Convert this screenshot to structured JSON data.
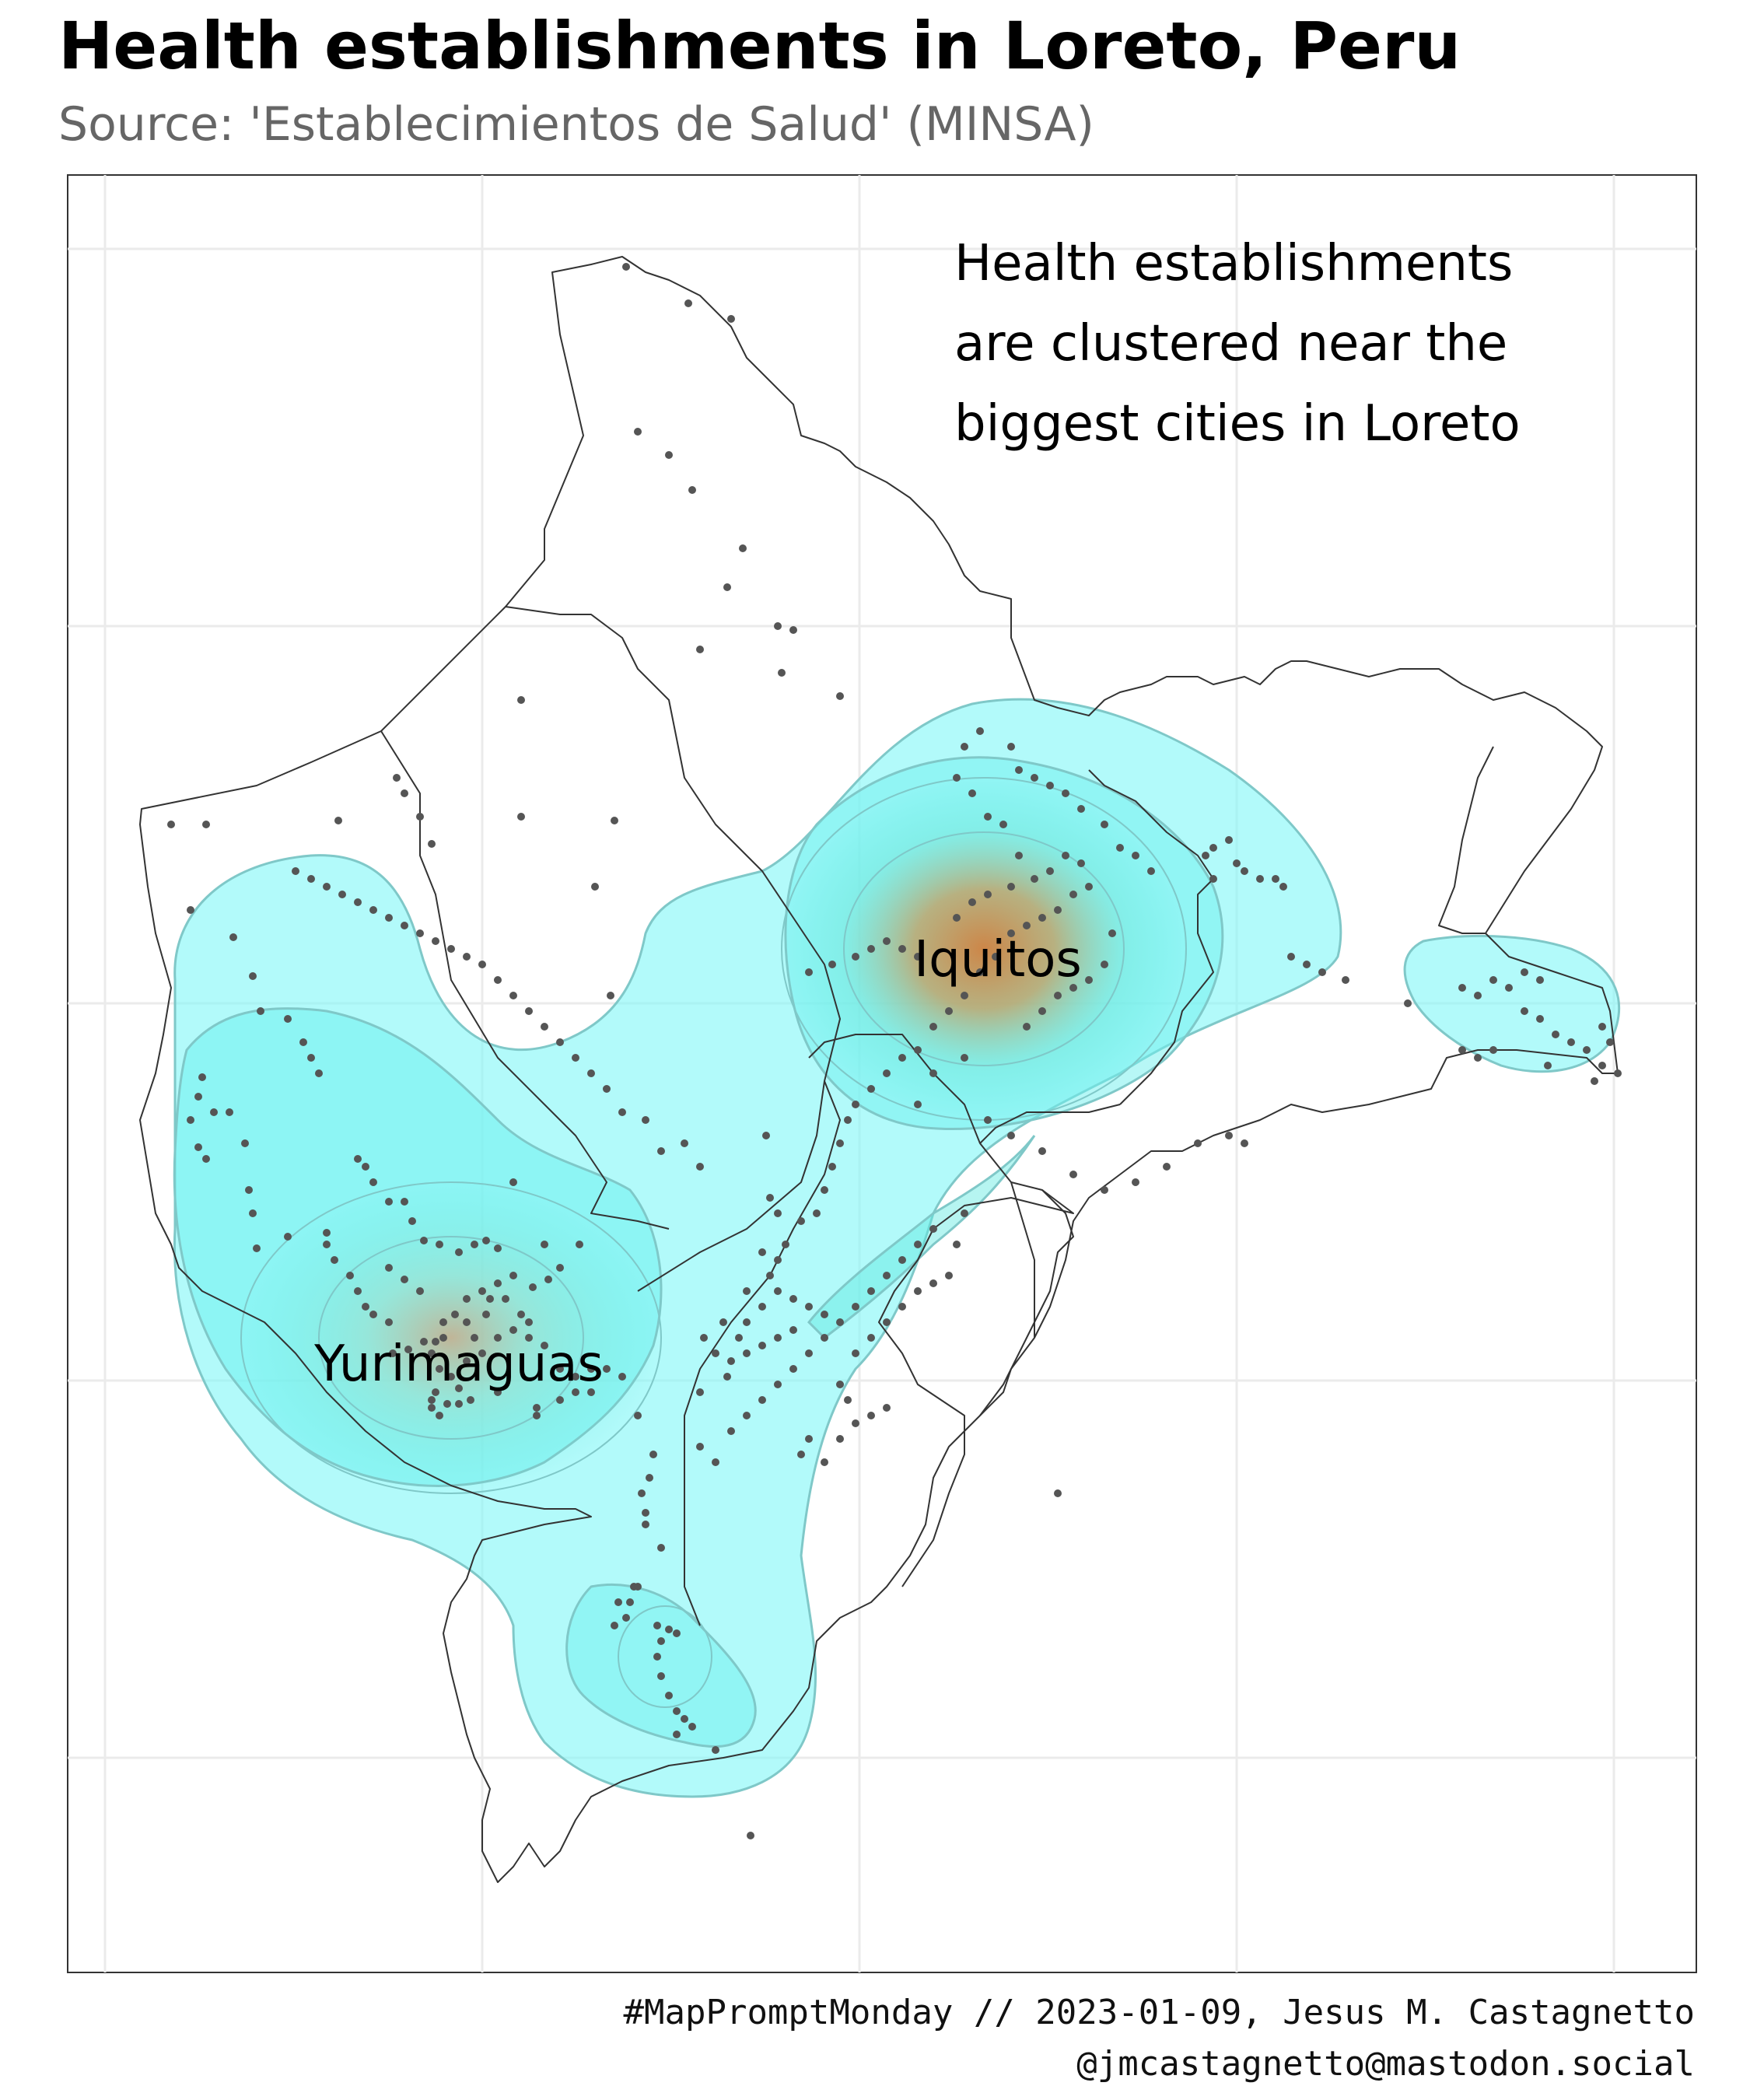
{
  "title": "Health establishments in Loreto, Peru",
  "subtitle": "Source: 'Establecimientos de Salud' (MINSA)",
  "annotation": {
    "lines": [
      "Health establishments",
      "are clustered near the",
      "biggest cities in Loreto"
    ]
  },
  "cities": {
    "iquitos": "Iquitos",
    "yurimaguas": "Yurimaguas"
  },
  "caption": {
    "line1": "#MapPromptMonday // 2023-01-09, Jesus M. Castagnetto",
    "line2": "@jmcastagnetto@mastodon.social"
  },
  "colors": {
    "density_low": "#7ff5f5",
    "density_mid": "#5eeae0",
    "density_high": "#c8884a",
    "points": "#555555",
    "border": "#333333",
    "grid": "#ebebeb"
  }
}
